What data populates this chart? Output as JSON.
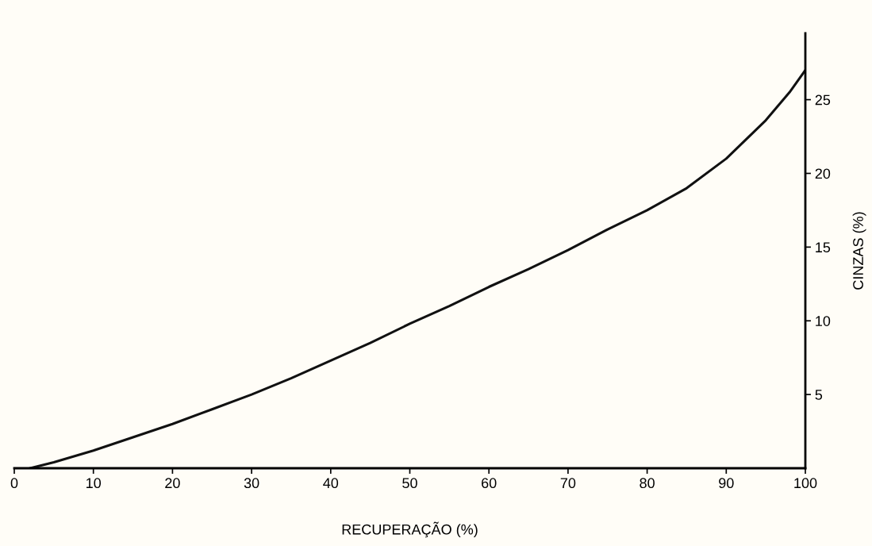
{
  "chart_data": {
    "type": "line",
    "xlabel": "RECUPERAÇÃO (%)",
    "ylabel": "CINZAS (%)",
    "x": [
      2,
      5,
      10,
      15,
      20,
      25,
      30,
      35,
      40,
      45,
      50,
      55,
      60,
      65,
      70,
      75,
      80,
      85,
      90,
      95,
      98,
      100
    ],
    "series": [
      {
        "color": "#111111",
        "values": [
          0,
          0.4,
          1.2,
          2.1,
          3.0,
          4.0,
          5.0,
          6.1,
          7.3,
          8.5,
          9.8,
          11.0,
          12.3,
          13.5,
          14.8,
          16.2,
          17.5,
          19.0,
          21.0,
          23.6,
          25.5,
          27.0
        ]
      }
    ],
    "xlim": [
      0,
      100
    ],
    "ylim": [
      0,
      29.5
    ],
    "xticks": [
      0,
      10,
      20,
      30,
      40,
      50,
      60,
      70,
      80,
      90,
      100
    ],
    "yticks": [
      5,
      10,
      15,
      20,
      25
    ],
    "grid": false,
    "legend": false,
    "marker": "none",
    "line_style": "solid"
  }
}
